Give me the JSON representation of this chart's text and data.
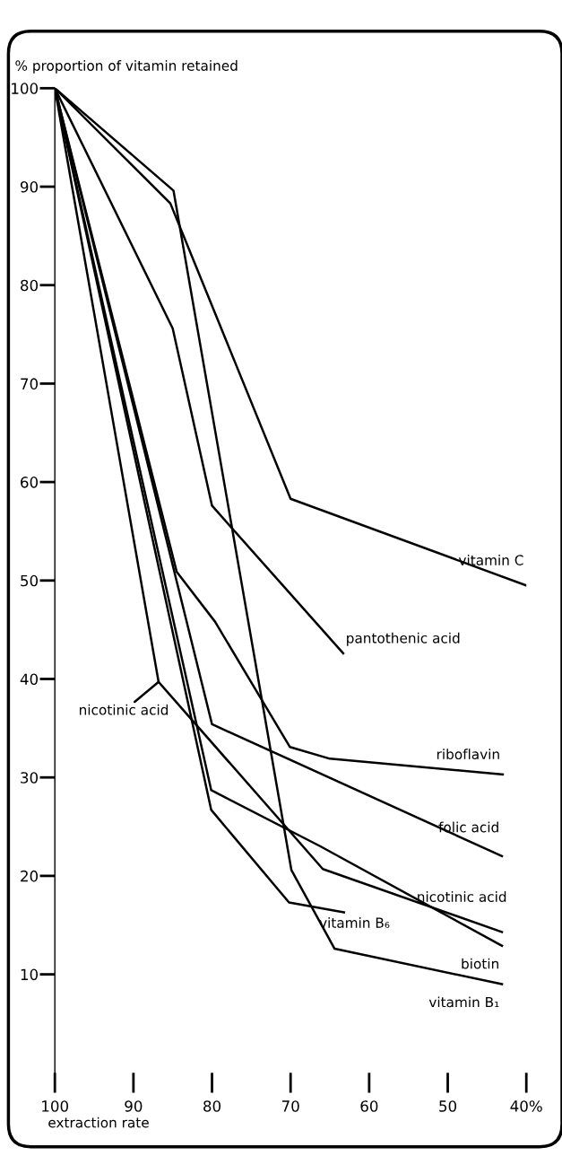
{
  "chart_data": {
    "type": "line",
    "ylabel": "% proportion of vitamin retained",
    "xlabel": "extraction rate",
    "xlim": [
      100,
      40
    ],
    "ylim": [
      0,
      100
    ],
    "xticks": [
      100,
      90,
      80,
      70,
      60,
      50,
      {
        "value": 40,
        "label": "40%"
      }
    ],
    "yticks": [
      10,
      20,
      30,
      40,
      50,
      60,
      70,
      80,
      90,
      100
    ],
    "grid": false,
    "legend": false,
    "marker": "none",
    "line_style": "solid",
    "series": [
      {
        "name": "vitamin C",
        "color": "#000000",
        "x": [
          100,
          85.3,
          70,
          40
        ],
        "values": [
          100,
          88.3,
          58.3,
          49.5
        ]
      },
      {
        "name": "pantothenic acid",
        "color": "#000000",
        "x": [
          100,
          85.0,
          80.0,
          63.3
        ],
        "values": [
          100,
          75.6,
          57.6,
          42.6
        ]
      },
      {
        "name": "riboflavin",
        "color": "#000000",
        "x": [
          100,
          84.5,
          79.6,
          70.1,
          65.0,
          43.0
        ],
        "values": [
          100,
          50.9,
          45.8,
          33.1,
          31.9,
          30.3
        ]
      },
      {
        "name": "folic acid",
        "color": "#000000",
        "x": [
          100,
          80.0,
          43.1
        ],
        "values": [
          100,
          35.4,
          22.0
        ]
      },
      {
        "name": "nicotinic acid",
        "color": "#000000",
        "x": [
          100,
          86.8,
          65.9,
          43.1
        ],
        "values": [
          100,
          39.7,
          20.7,
          14.3
        ]
      },
      {
        "name": "biotin",
        "color": "#000000",
        "x": [
          100,
          80.1,
          66.2,
          43.1
        ],
        "values": [
          100,
          28.7,
          23.0,
          12.9
        ]
      },
      {
        "name": "vitamin B₁",
        "color": "#000000",
        "x": [
          100,
          84.9,
          69.9,
          64.4,
          43.1
        ],
        "values": [
          100,
          89.6,
          20.6,
          12.6,
          9.0
        ]
      },
      {
        "name": "vitamin B₆",
        "color": "#000000",
        "x": [
          100,
          80.1,
          70.2,
          63.2
        ],
        "values": [
          100,
          26.7,
          17.3,
          16.3
        ]
      }
    ],
    "annotations": [
      {
        "text": "nicotinic acid",
        "x": 86.8,
        "y": 39.7
      }
    ]
  }
}
